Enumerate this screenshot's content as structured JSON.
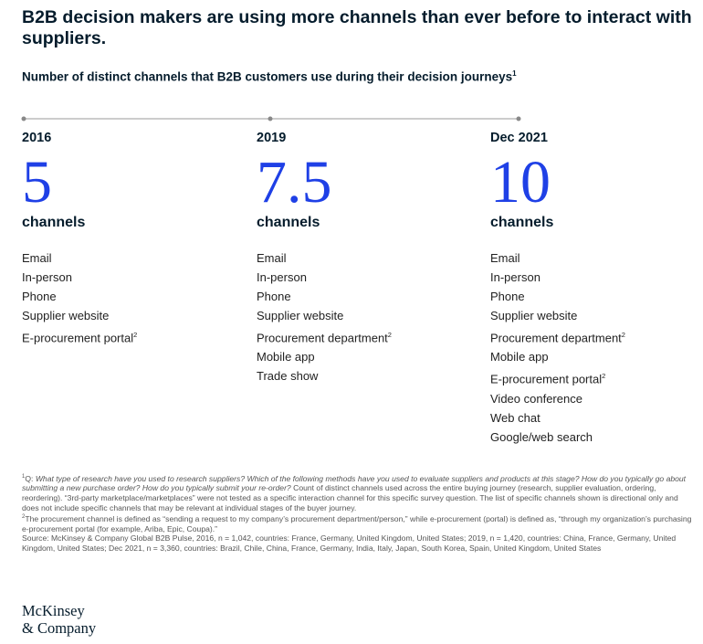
{
  "title": "B2B decision makers are using more channels than ever before to interact with suppliers.",
  "subtitle": "Number of distinct channels that B2B customers use during their decision journeys",
  "subtitle_sup": "1",
  "colors": {
    "accent": "#1f40e6",
    "text_dark": "#051c2c",
    "timeline": "#999999"
  },
  "chart_data": {
    "type": "table",
    "title": "B2B decision makers are using more channels than ever before to interact with suppliers.",
    "subtitle": "Number of distinct channels that B2B customers use during their decision journeys",
    "columns": [
      {
        "year": "2016",
        "value": "5",
        "unit": "channels",
        "channels": [
          {
            "name": "Email",
            "sup": ""
          },
          {
            "name": "In-person",
            "sup": ""
          },
          {
            "name": "Phone",
            "sup": ""
          },
          {
            "name": "Supplier website",
            "sup": ""
          },
          {
            "name": "E-procurement portal",
            "sup": "2"
          }
        ]
      },
      {
        "year": "2019",
        "value": "7.5",
        "unit": "channels",
        "channels": [
          {
            "name": "Email",
            "sup": ""
          },
          {
            "name": "In-person",
            "sup": ""
          },
          {
            "name": "Phone",
            "sup": ""
          },
          {
            "name": "Supplier website",
            "sup": ""
          },
          {
            "name": "Procurement department",
            "sup": "2"
          },
          {
            "name": "Mobile app",
            "sup": ""
          },
          {
            "name": "Trade show",
            "sup": ""
          }
        ]
      },
      {
        "year": "Dec 2021",
        "value": "10",
        "unit": "channels",
        "channels": [
          {
            "name": "Email",
            "sup": ""
          },
          {
            "name": "In-person",
            "sup": ""
          },
          {
            "name": "Phone",
            "sup": ""
          },
          {
            "name": "Supplier website",
            "sup": ""
          },
          {
            "name": "Procurement department",
            "sup": "2"
          },
          {
            "name": "Mobile app",
            "sup": ""
          },
          {
            "name": "E-procurement portal",
            "sup": "2"
          },
          {
            "name": "Video conference",
            "sup": ""
          },
          {
            "name": "Web chat",
            "sup": ""
          },
          {
            "name": "Google/web search",
            "sup": ""
          }
        ]
      }
    ]
  },
  "footnotes": {
    "note1_sup": "1",
    "note1_prefix": "Q: ",
    "note1_question": "What type of research have you used to research suppliers? Which of the following methods have you used to evaluate suppliers and products at this stage? How do you typically go about submitting a new purchase order? How do you typically submit your re-order?",
    "note1_body": " Count of distinct channels used across the entire buying journey (research, supplier evaluation, ordering, reordering). “3rd-party marketplace/marketplaces” were not tested as a specific interaction channel for this specific survey question. The list of specific channels shown is directional only and does not include specific channels that may be relevant at individual stages of the buyer journey.",
    "note2_sup": "2",
    "note2": "The procurement channel is defined as “sending a request to my company’s procurement department/person,” while e-procurement (portal) is defined as, “through my organization’s purchasing e-procurement portal (for example, Ariba, Epic, Coupa).”",
    "source": "Source: McKinsey & Company Global B2B Pulse, 2016, n = 1,042, countries: France, Germany, United Kingdom, United States; 2019, n = 1,420, countries: China, France, Germany, United Kingdom, United States; Dec 2021, n = 3,360, countries: Brazil, Chile, China, France, Germany, India, Italy, Japan, South Korea, Spain, United Kingdom, United States"
  },
  "logo": {
    "line1": "McKinsey",
    "line2": "& Company"
  }
}
